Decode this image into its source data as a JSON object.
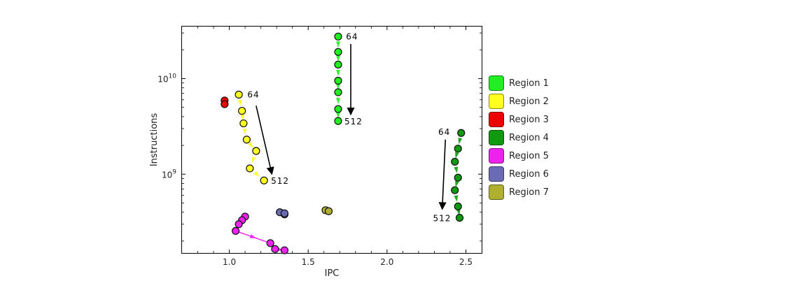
{
  "chart_data": {
    "type": "scatter",
    "xlabel": "IPC",
    "ylabel": "Instructions",
    "xscale": "linear",
    "yscale": "log",
    "xlim": [
      0.7,
      2.6
    ],
    "ylim": [
      150000000,
      35000000000
    ],
    "xticks": [
      {
        "value": 1.0,
        "label": "1.0"
      },
      {
        "value": 1.5,
        "label": "1.5"
      },
      {
        "value": 2.0,
        "label": "2.0"
      },
      {
        "value": 2.5,
        "label": "2.5"
      }
    ],
    "yticks": [
      {
        "value": 1000000000,
        "base": "10",
        "exp": "9"
      },
      {
        "value": 10000000000,
        "base": "10",
        "exp": "10"
      }
    ],
    "grid": false,
    "legend_position": "right",
    "series": [
      {
        "name": "Region 1",
        "color": "#22ee22",
        "points": [
          [
            1.69,
            27500000000.0
          ],
          [
            1.69,
            19000000000.0
          ],
          [
            1.69,
            14000000000.0
          ],
          [
            1.69,
            9500000000.0
          ],
          [
            1.69,
            7200000000.0
          ],
          [
            1.69,
            4800000000.0
          ],
          [
            1.69,
            3600000000.0
          ]
        ]
      },
      {
        "name": "Region 2",
        "color": "#ffff22",
        "points": [
          [
            1.06,
            6800000000.0
          ],
          [
            1.08,
            4600000000.0
          ],
          [
            1.09,
            3400000000.0
          ],
          [
            1.11,
            2300000000.0
          ],
          [
            1.17,
            1750000000.0
          ],
          [
            1.13,
            1150000000.0
          ],
          [
            1.22,
            860000000.0
          ]
        ]
      },
      {
        "name": "Region 3",
        "color": "#ee0000",
        "points": [
          [
            0.97,
            5900000000.0
          ],
          [
            0.97,
            5400000000.0
          ]
        ]
      },
      {
        "name": "Region 4",
        "color": "#119911",
        "points": [
          [
            2.47,
            2700000000.0
          ],
          [
            2.45,
            1850000000.0
          ],
          [
            2.43,
            1350000000.0
          ],
          [
            2.45,
            920000000.0
          ],
          [
            2.43,
            680000000.0
          ],
          [
            2.45,
            460000000.0
          ],
          [
            2.46,
            350000000.0
          ]
        ]
      },
      {
        "name": "Region 5",
        "color": "#ee22ee",
        "points": [
          [
            1.1,
            360000000.0
          ],
          [
            1.08,
            330000000.0
          ],
          [
            1.06,
            300000000.0
          ],
          [
            1.04,
            255000000.0
          ],
          [
            1.26,
            190000000.0
          ],
          [
            1.29,
            165000000.0
          ],
          [
            1.35,
            160000000.0
          ]
        ]
      },
      {
        "name": "Region 6",
        "color": "#6b6bb5",
        "points": [
          [
            1.32,
            400000000.0
          ],
          [
            1.35,
            380000000.0
          ],
          [
            1.35,
            390000000.0
          ]
        ]
      },
      {
        "name": "Region 7",
        "color": "#b0b030",
        "points": [
          [
            1.61,
            420000000.0
          ],
          [
            1.63,
            410000000.0
          ]
        ]
      }
    ],
    "annotations": [
      {
        "text": "64",
        "x": 1.7,
        "y": 27500000000.0,
        "arrow_from": [
          1.77,
          23000000000.0
        ],
        "arrow_to": [
          1.77,
          4200000000.0
        ],
        "label_end": "512"
      },
      {
        "text": "64",
        "x": 1.07,
        "y": 6800000000.0,
        "arrow_from": [
          1.17,
          5200000000.0
        ],
        "arrow_to": [
          1.27,
          1000000000.0
        ],
        "label_end": "512"
      },
      {
        "text": "64",
        "x": 2.44,
        "y": 2700000000.0,
        "arrow_from": [
          2.37,
          2300000000.0
        ],
        "arrow_to": [
          2.35,
          430000000.0
        ],
        "label_end": "512"
      }
    ]
  }
}
